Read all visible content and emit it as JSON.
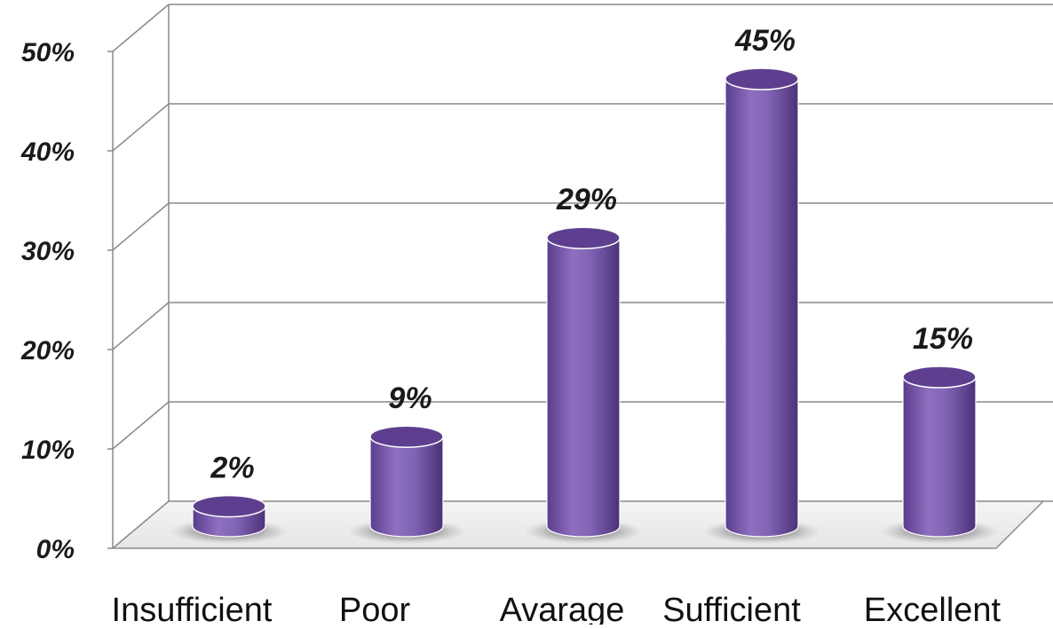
{
  "chart_data": {
    "type": "bar",
    "style": "3d-cylinder",
    "categories": [
      "Insufficient",
      "Poor",
      "Avarage",
      "Sufficient",
      "Excellent"
    ],
    "values": [
      2,
      9,
      29,
      45,
      15
    ],
    "data_labels": [
      "2%",
      "9%",
      "29%",
      "45%",
      "15%"
    ],
    "y_ticks": [
      "0%",
      "10%",
      "20%",
      "30%",
      "40%",
      "50%"
    ],
    "ylim": [
      0,
      50
    ],
    "grid": true,
    "legend": "none",
    "colors": {
      "bar_light": "#9d7fc9",
      "bar_mid": "#7f5fb0",
      "bar_dark": "#4f3480",
      "bar_top": "#5e3f8f",
      "grid": "#8a8a8a"
    }
  }
}
